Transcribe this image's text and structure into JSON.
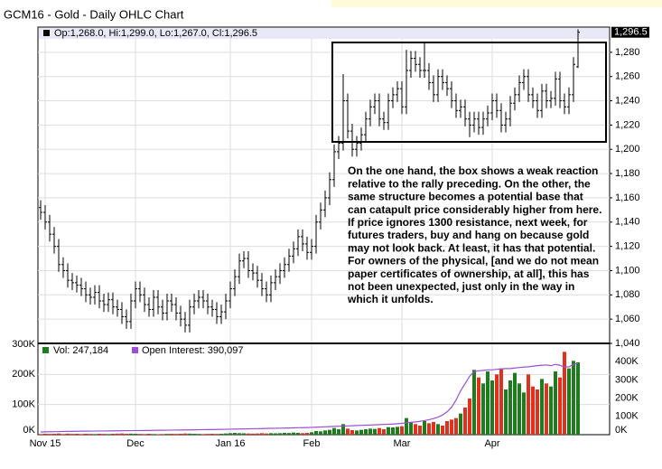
{
  "chart_data": {
    "type": "ohlc",
    "title": "GCM16 - Gold - Daily OHLC Chart",
    "header": "Op:1,268.0, Hi:1,299.0, Lo:1,267.0, Cl:1,296.5",
    "last_price_label": "1,296.5",
    "categories": [
      null,
      "Nov 15",
      null,
      null,
      null,
      null,
      null,
      null,
      null,
      null,
      null,
      null,
      null,
      null,
      null,
      null,
      null,
      null,
      null,
      null,
      null,
      "Dec",
      null,
      null,
      null,
      null,
      null,
      null,
      null,
      null,
      null,
      null,
      null,
      null,
      null,
      null,
      null,
      null,
      null,
      null,
      null,
      null,
      "Jan 16",
      null,
      null,
      null,
      null,
      null,
      null,
      null,
      null,
      null,
      null,
      null,
      null,
      null,
      null,
      null,
      null,
      null,
      "Feb",
      null,
      null,
      null,
      null,
      null,
      null,
      null,
      null,
      null,
      null,
      null,
      null,
      null,
      null,
      null,
      null,
      null,
      null,
      null,
      "Mar",
      null,
      null,
      null,
      null,
      null,
      null,
      null,
      null,
      null,
      null,
      null,
      null,
      null,
      null,
      null,
      null,
      null,
      null,
      null,
      "Apr",
      null,
      null,
      null,
      null,
      null,
      null,
      null,
      null,
      null,
      null,
      null,
      null,
      null,
      null,
      null,
      null,
      null,
      null,
      null
    ],
    "ohlc": [
      [
        1152,
        1158,
        1142,
        1148
      ],
      [
        1148,
        1154,
        1134,
        1140
      ],
      [
        1140,
        1146,
        1124,
        1130
      ],
      [
        1130,
        1136,
        1114,
        1120
      ],
      [
        1120,
        1126,
        1099,
        1105
      ],
      [
        1105,
        1111,
        1094,
        1100
      ],
      [
        1100,
        1106,
        1086,
        1092
      ],
      [
        1092,
        1098,
        1084,
        1090
      ],
      [
        1090,
        1096,
        1082,
        1088
      ],
      [
        1088,
        1094,
        1079,
        1085
      ],
      [
        1085,
        1091,
        1074,
        1080
      ],
      [
        1080,
        1086,
        1072,
        1078
      ],
      [
        1078,
        1088,
        1072,
        1082
      ],
      [
        1082,
        1088,
        1069,
        1075
      ],
      [
        1075,
        1081,
        1066,
        1072
      ],
      [
        1072,
        1082,
        1066,
        1076
      ],
      [
        1076,
        1082,
        1064,
        1070
      ],
      [
        1070,
        1076,
        1062,
        1068
      ],
      [
        1068,
        1074,
        1056,
        1062
      ],
      [
        1062,
        1068,
        1052,
        1058
      ],
      [
        1058,
        1081,
        1052,
        1075
      ],
      [
        1075,
        1091,
        1069,
        1085
      ],
      [
        1085,
        1091,
        1074,
        1080
      ],
      [
        1080,
        1086,
        1066,
        1072
      ],
      [
        1072,
        1078,
        1062,
        1068
      ],
      [
        1068,
        1084,
        1062,
        1078
      ],
      [
        1078,
        1084,
        1064,
        1070
      ],
      [
        1070,
        1076,
        1059,
        1065
      ],
      [
        1065,
        1081,
        1059,
        1075
      ],
      [
        1075,
        1081,
        1066,
        1072
      ],
      [
        1072,
        1078,
        1059,
        1065
      ],
      [
        1065,
        1071,
        1054,
        1060
      ],
      [
        1060,
        1066,
        1049,
        1055
      ],
      [
        1055,
        1076,
        1049,
        1070
      ],
      [
        1070,
        1081,
        1064,
        1075
      ],
      [
        1075,
        1084,
        1069,
        1078
      ],
      [
        1078,
        1084,
        1069,
        1075
      ],
      [
        1075,
        1081,
        1064,
        1070
      ],
      [
        1070,
        1076,
        1062,
        1068
      ],
      [
        1068,
        1074,
        1056,
        1062
      ],
      [
        1062,
        1072,
        1056,
        1066
      ],
      [
        1066,
        1081,
        1060,
        1075
      ],
      [
        1075,
        1091,
        1069,
        1085
      ],
      [
        1085,
        1101,
        1079,
        1095
      ],
      [
        1095,
        1114,
        1089,
        1108
      ],
      [
        1108,
        1116,
        1102,
        1110
      ],
      [
        1110,
        1116,
        1094,
        1100
      ],
      [
        1100,
        1106,
        1092,
        1098
      ],
      [
        1098,
        1104,
        1086,
        1092
      ],
      [
        1092,
        1098,
        1079,
        1085
      ],
      [
        1085,
        1091,
        1074,
        1080
      ],
      [
        1080,
        1096,
        1074,
        1090
      ],
      [
        1090,
        1101,
        1084,
        1095
      ],
      [
        1095,
        1106,
        1089,
        1100
      ],
      [
        1100,
        1111,
        1094,
        1105
      ],
      [
        1105,
        1118,
        1099,
        1112
      ],
      [
        1112,
        1124,
        1106,
        1118
      ],
      [
        1118,
        1134,
        1112,
        1128
      ],
      [
        1128,
        1134,
        1116,
        1122
      ],
      [
        1122,
        1128,
        1109,
        1115
      ],
      [
        1115,
        1126,
        1109,
        1120
      ],
      [
        1120,
        1146,
        1114,
        1140
      ],
      [
        1140,
        1156,
        1134,
        1150
      ],
      [
        1150,
        1166,
        1144,
        1160
      ],
      [
        1160,
        1181,
        1154,
        1175
      ],
      [
        1175,
        1204,
        1169,
        1198
      ],
      [
        1198,
        1211,
        1192,
        1205
      ],
      [
        1205,
        1262,
        1199,
        1240
      ],
      [
        1240,
        1246,
        1209,
        1215
      ],
      [
        1215,
        1221,
        1194,
        1200
      ],
      [
        1200,
        1211,
        1194,
        1205
      ],
      [
        1205,
        1218,
        1199,
        1212
      ],
      [
        1212,
        1231,
        1206,
        1225
      ],
      [
        1225,
        1241,
        1219,
        1235
      ],
      [
        1235,
        1246,
        1229,
        1240
      ],
      [
        1240,
        1246,
        1219,
        1225
      ],
      [
        1225,
        1231,
        1216,
        1222
      ],
      [
        1222,
        1246,
        1216,
        1240
      ],
      [
        1240,
        1251,
        1234,
        1245
      ],
      [
        1245,
        1256,
        1239,
        1250
      ],
      [
        1250,
        1256,
        1229,
        1235
      ],
      [
        1235,
        1282,
        1229,
        1265
      ],
      [
        1265,
        1281,
        1259,
        1275
      ],
      [
        1275,
        1281,
        1264,
        1270
      ],
      [
        1270,
        1276,
        1259,
        1265
      ],
      [
        1265,
        1288,
        1259,
        1265
      ],
      [
        1265,
        1271,
        1249,
        1255
      ],
      [
        1255,
        1261,
        1239,
        1245
      ],
      [
        1245,
        1266,
        1239,
        1260
      ],
      [
        1260,
        1266,
        1249,
        1255
      ],
      [
        1255,
        1261,
        1244,
        1250
      ],
      [
        1250,
        1256,
        1234,
        1240
      ],
      [
        1240,
        1246,
        1226,
        1232
      ],
      [
        1232,
        1241,
        1226,
        1235
      ],
      [
        1235,
        1241,
        1219,
        1225
      ],
      [
        1225,
        1231,
        1210,
        1220
      ],
      [
        1220,
        1231,
        1214,
        1225
      ],
      [
        1225,
        1231,
        1212,
        1218
      ],
      [
        1218,
        1231,
        1212,
        1225
      ],
      [
        1225,
        1236,
        1219,
        1230
      ],
      [
        1230,
        1246,
        1224,
        1240
      ],
      [
        1240,
        1246,
        1226,
        1232
      ],
      [
        1232,
        1238,
        1214,
        1220
      ],
      [
        1220,
        1231,
        1214,
        1225
      ],
      [
        1225,
        1244,
        1219,
        1238
      ],
      [
        1238,
        1251,
        1232,
        1245
      ],
      [
        1245,
        1261,
        1239,
        1255
      ],
      [
        1255,
        1266,
        1249,
        1260
      ],
      [
        1260,
        1266,
        1239,
        1245
      ],
      [
        1245,
        1251,
        1234,
        1240
      ],
      [
        1240,
        1246,
        1226,
        1232
      ],
      [
        1232,
        1254,
        1226,
        1248
      ],
      [
        1248,
        1254,
        1234,
        1240
      ],
      [
        1240,
        1248,
        1234,
        1242
      ],
      [
        1242,
        1264,
        1236,
        1258
      ],
      [
        1258,
        1264,
        1234,
        1240
      ],
      [
        1240,
        1246,
        1229,
        1235
      ],
      [
        1235,
        1251,
        1229,
        1245
      ],
      [
        1245,
        1276,
        1239,
        1270
      ],
      [
        1268,
        1299,
        1267,
        1296.5
      ]
    ],
    "ylim": [
      1040,
      1300
    ],
    "yticks": [
      {
        "value": 1040,
        "label": "1,040"
      },
      {
        "value": 1060,
        "label": "1,060"
      },
      {
        "value": 1080,
        "label": "1,080"
      },
      {
        "value": 1100,
        "label": "1,100"
      },
      {
        "value": 1120,
        "label": "1,120"
      },
      {
        "value": 1140,
        "label": "1,140"
      },
      {
        "value": 1160,
        "label": "1,160"
      },
      {
        "value": 1180,
        "label": "1,180"
      },
      {
        "value": 1200,
        "label": "1,200"
      },
      {
        "value": 1220,
        "label": "1,220"
      },
      {
        "value": 1240,
        "label": "1,240"
      },
      {
        "value": 1260,
        "label": "1,260"
      },
      {
        "value": 1280,
        "label": "1,280"
      }
    ],
    "grid": true,
    "bar_color": "#000000",
    "volume": {
      "name": "Vol: 247,184",
      "up_color": "#1e7b1e",
      "down_color": "#e0301e",
      "values": [
        2000,
        3000,
        2500,
        3000,
        4000,
        2000,
        3500,
        2500,
        3000,
        2000,
        3000,
        2500,
        2000,
        3000,
        2500,
        2000,
        3000,
        3500,
        4000,
        3000,
        3500,
        3000,
        2500,
        2000,
        3000,
        2000,
        1500,
        2000,
        2500,
        3000,
        2500,
        3000,
        4000,
        3500,
        3000,
        2500,
        2000,
        2500,
        3000,
        2500,
        3000,
        4000,
        5000,
        6000,
        5000,
        4500,
        4000,
        3500,
        4000,
        5000,
        4000,
        5000,
        4500,
        5000,
        6000,
        5500,
        7000,
        6000,
        5000,
        6000,
        8000,
        12000,
        11000,
        14000,
        16000,
        22000,
        18000,
        35000,
        20000,
        15000,
        14000,
        16000,
        18000,
        20000,
        19000,
        22000,
        18000,
        25000,
        24000,
        26000,
        28000,
        55000,
        40000,
        35000,
        30000,
        45000,
        38000,
        42000,
        35000,
        30000,
        45000,
        50000,
        55000,
        70000,
        90000,
        120000,
        215000,
        190000,
        170000,
        210000,
        180000,
        200000,
        220000,
        150000,
        180000,
        205000,
        170000,
        140000,
        200000,
        160000,
        150000,
        185000,
        170000,
        160000,
        210000,
        190000,
        275000,
        220000,
        245000,
        240000
      ],
      "ylim": [
        0,
        300000
      ],
      "yticks": [
        {
          "value": 0,
          "label": "0K"
        },
        {
          "value": 100000,
          "label": "100K"
        },
        {
          "value": 200000,
          "label": "200K"
        },
        {
          "value": 300000,
          "label": "300K"
        }
      ]
    },
    "open_interest": {
      "name": "Open Interest: 390,097",
      "color": "#9b4fd6",
      "axis": "y2",
      "values": [
        15000,
        15500,
        16000,
        16500,
        17000,
        17500,
        18000,
        18000,
        18500,
        19000,
        19000,
        19500,
        19500,
        20000,
        20000,
        20500,
        21000,
        21000,
        21500,
        22000,
        22000,
        22500,
        22500,
        23000,
        23000,
        23500,
        24000,
        24000,
        24500,
        25000,
        25000,
        25500,
        26000,
        26000,
        26500,
        27000,
        27500,
        28000,
        28000,
        28500,
        29000,
        29500,
        30000,
        30500,
        31000,
        31500,
        32000,
        32500,
        33000,
        33500,
        34000,
        34500,
        35000,
        35500,
        36000,
        36500,
        37000,
        38000,
        38500,
        39000,
        40000,
        41000,
        42000,
        43000,
        44000,
        45000,
        46000,
        47000,
        48000,
        49000,
        50000,
        51000,
        52000,
        53000,
        54000,
        55000,
        56000,
        57000,
        58000,
        60000,
        62000,
        65000,
        68000,
        70000,
        73000,
        77000,
        82000,
        88000,
        96000,
        108000,
        125000,
        150000,
        190000,
        240000,
        280000,
        320000,
        345000,
        350000,
        352000,
        355000,
        355000,
        358000,
        360000,
        362000,
        362000,
        365000,
        368000,
        370000,
        372000,
        375000,
        378000,
        380000,
        382000,
        378000,
        385000,
        380000,
        370000,
        372000,
        385000,
        390097
      ],
      "y2lim": [
        0,
        500000
      ],
      "y2ticks": [
        {
          "value": 0,
          "label": "0K"
        },
        {
          "value": 100000,
          "label": "100K"
        },
        {
          "value": 200000,
          "label": "200K"
        },
        {
          "value": 300000,
          "label": "300K"
        },
        {
          "value": 400000,
          "label": "400K"
        }
      ]
    },
    "annotation": [
      "On the one hand, the box shows a weak reaction",
      "relative to the rally preceding.  On the other, the",
      "same structure becomes a potential base that",
      "can catapult price considerably higher from here.",
      "If price ignores 1300 resistance, next week, for",
      "futures traders, buy and hang on because gold",
      "may not look back.  At least, it has that potential.",
      "For owners of the physical, [and we do not mean",
      "paper certificates of ownership, at all], this has",
      "not been unexpected, just only in the way in",
      "which it unfolds."
    ]
  }
}
